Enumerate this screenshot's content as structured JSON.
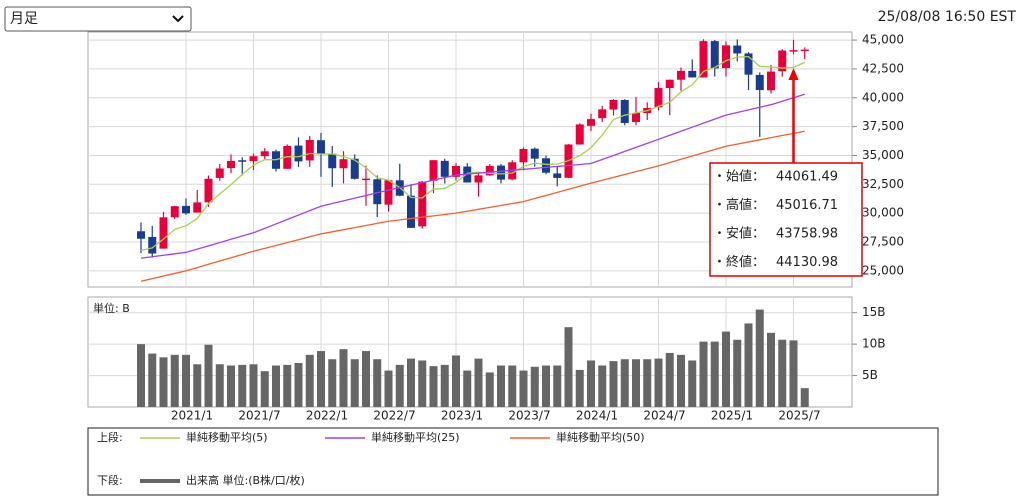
{
  "period_select": "月足",
  "timestamp": "25/08/08 16:50 EST",
  "tooltip": {
    "labels": [
      "・始値：",
      "・高値：",
      "・安値：",
      "・終値："
    ]
  },
  "chart_data": [
    {
      "type": "candlestick",
      "up_color": "#e8003c",
      "down_color": "#1a3c8f",
      "legend_label": "上段:",
      "ylim": [
        23600,
        45700
      ],
      "yticks": [
        {
          "value": 25000,
          "label": "25,000"
        },
        {
          "value": 27500,
          "label": "27,500"
        },
        {
          "value": 30000,
          "label": "30,000"
        },
        {
          "value": 32500,
          "label": "32,500"
        },
        {
          "value": 35000,
          "label": "35,000"
        },
        {
          "value": 37500,
          "label": "37,500"
        },
        {
          "value": 40000,
          "label": "40,000"
        },
        {
          "value": 42500,
          "label": "42,500"
        },
        {
          "value": 45000,
          "label": "45,000"
        }
      ],
      "grid": true,
      "open": [
        28430,
        27940,
        26925,
        29638,
        30627,
        30054,
        30939,
        33054,
        33904,
        34584,
        34507,
        34940,
        35361,
        33844,
        35856,
        34571,
        36322,
        35152,
        33893,
        34712,
        32989,
        32937,
        30737,
        32847,
        31510,
        28855,
        32810,
        34533,
        33148,
        34039,
        32656,
        33276,
        34123,
        32928,
        34408,
        35586,
        34757,
        33441,
        33061,
        35950,
        37567,
        38230,
        38980,
        39809,
        37900,
        38675,
        39169,
        40842,
        41563,
        42331,
        41763,
        44911,
        42574,
        44529,
        43845,
        41982,
        40650,
        42301,
        44061.49,
        44119
      ],
      "high": [
        29199,
        28903,
        30117,
        30637,
        31272,
        32010,
        33259,
        34257,
        35091,
        34849,
        35172,
        35631,
        35510,
        35952,
        36566,
        36679,
        36952,
        35824,
        35372,
        35093,
        34118,
        33272,
        32913,
        34281,
        32504,
        32784,
        34589,
        34712,
        34342,
        34335,
        33572,
        34257,
        34257,
        34589,
        35679,
        35679,
        34979,
        34050,
        35989,
        37778,
        38614,
        39282,
        39889,
        39871,
        40077,
        39606,
        41376,
        41586,
        42628,
        43325,
        45074,
        45014,
        44882,
        45054,
        43953,
        42200,
        42843,
        44215,
        45016.71,
        44360
      ],
      "low": [
        26537,
        26143,
        26925,
        29500,
        29856,
        30054,
        30548,
        32807,
        33474,
        33272,
        33741,
        34688,
        33613,
        33843,
        34006,
        34006,
        33150,
        32273,
        32578,
        32913,
        30636,
        29653,
        30143,
        31470,
        28715,
        28660,
        31727,
        32573,
        32812,
        32655,
        31430,
        33235,
        32586,
        32852,
        33705,
        34030,
        33368,
        32327,
        33042,
        35933,
        37122,
        37905,
        38459,
        37612,
        37611,
        38075,
        38904,
        38500,
        40611,
        41745,
        41763,
        41844,
        41825,
        43152,
        40661,
        36612,
        40373,
        41838,
        43758.98,
        43340
      ],
      "close": [
        27782,
        26502,
        29638,
        30606,
        29983,
        30932,
        32981,
        33875,
        34529,
        34503,
        34935,
        35361,
        33844,
        35820,
        34484,
        36338,
        35132,
        33893,
        34678,
        32977,
        32990,
        30775,
        32845,
        31510,
        28726,
        32733,
        34590,
        33147,
        34086,
        32657,
        33274,
        34098,
        32908,
        34408,
        35559,
        34721,
        33507,
        33052,
        35950,
        37689,
        38150,
        38996,
        39807,
        37816,
        38686,
        39119,
        40843,
        41563,
        42330,
        41763,
        44910,
        42544,
        44545,
        43841,
        42002,
        40669,
        42270,
        44095,
        44130.98,
        44176
      ],
      "series": [
        {
          "name": "単純移動平均(5)",
          "color": "#a8d050",
          "values": [
            26767,
            26991,
            27756,
            28592,
            28902,
            29532,
            30828,
            31675,
            32460,
            33364,
            34165,
            34641,
            34634,
            34893,
            34889,
            35169,
            35124,
            35133,
            34905,
            34604,
            33934,
            33063,
            32853,
            32219,
            31369,
            31318,
            32081,
            32141,
            32656,
            33443,
            33551,
            33452,
            33405,
            33469,
            34049,
            34339,
            34221,
            34249,
            34558,
            34984,
            35670,
            36767,
            38118,
            38492,
            38691,
            38885,
            39254,
            39605,
            40508,
            41124,
            42282,
            42622,
            43218,
            43521,
            43568,
            42720,
            42665,
            42575,
            42633,
            43068
          ]
        },
        {
          "name": "単純移動平均(25)",
          "color": "#a040f0",
          "values": [
            26100,
            26225,
            26350,
            26475,
            26600,
            26883,
            27167,
            27450,
            27733,
            28017,
            28300,
            28683,
            29067,
            29450,
            29833,
            30217,
            30600,
            30833,
            31067,
            31300,
            31533,
            31767,
            32000,
            32217,
            32433,
            32650,
            32867,
            33083,
            33300,
            33383,
            33467,
            33550,
            33633,
            33717,
            33800,
            33883,
            33967,
            34050,
            34133,
            34217,
            34300,
            34650,
            35000,
            35350,
            35700,
            36050,
            36400,
            36750,
            37100,
            37450,
            37800,
            38150,
            38500,
            38725,
            38950,
            39175,
            39400,
            39700,
            40000,
            40300
          ]
        },
        {
          "name": "単純移動平均(50)",
          "color": "#f06030",
          "values": [
            24100,
            24325,
            24550,
            24775,
            25000,
            25283,
            25567,
            25850,
            26133,
            26417,
            26700,
            26950,
            27200,
            27450,
            27700,
            27950,
            28200,
            28383,
            28567,
            28750,
            28933,
            29117,
            29300,
            29417,
            29533,
            29650,
            29767,
            29883,
            30000,
            30167,
            30333,
            30500,
            30667,
            30833,
            31000,
            31267,
            31533,
            31800,
            32067,
            32333,
            32600,
            32850,
            33100,
            33350,
            33600,
            33850,
            34100,
            34383,
            34667,
            34950,
            35233,
            35517,
            35800,
            35986,
            36171,
            36357,
            36543,
            36729,
            36914,
            37100
          ]
        }
      ]
    },
    {
      "type": "bar",
      "axis_label": "単位: B",
      "legend_label": "下段:",
      "categories": [
        null,
        null,
        null,
        null,
        "2021/1",
        null,
        null,
        null,
        null,
        null,
        "2021/7",
        null,
        null,
        null,
        null,
        null,
        "2022/1",
        null,
        null,
        null,
        null,
        null,
        "2022/7",
        null,
        null,
        null,
        null,
        null,
        "2023/1",
        null,
        null,
        null,
        null,
        null,
        "2023/7",
        null,
        null,
        null,
        null,
        null,
        "2024/1",
        null,
        null,
        null,
        null,
        null,
        "2024/7",
        null,
        null,
        null,
        null,
        null,
        "2025/1",
        null,
        null,
        null,
        null,
        null,
        "2025/7",
        null
      ],
      "ylim": [
        0,
        17.5
      ],
      "yticks": [
        {
          "value": 5,
          "label": "5B"
        },
        {
          "value": 10,
          "label": "10B"
        },
        {
          "value": 15,
          "label": "15B"
        }
      ],
      "grid": true,
      "series": [
        {
          "name": "出来高 単位:(B株/口/枚)",
          "color": "#666666",
          "values": [
            10.0,
            8.5,
            7.9,
            8.3,
            8.3,
            6.8,
            9.9,
            6.8,
            6.6,
            6.7,
            6.8,
            5.7,
            6.6,
            6.7,
            7.0,
            8.3,
            8.9,
            7.6,
            9.2,
            7.6,
            8.9,
            7.6,
            5.8,
            6.7,
            7.7,
            7.4,
            6.5,
            6.7,
            8.2,
            5.8,
            7.7,
            5.5,
            6.6,
            6.6,
            5.8,
            6.4,
            6.6,
            6.6,
            12.7,
            5.9,
            7.4,
            6.6,
            7.3,
            7.6,
            7.6,
            7.6,
            7.7,
            8.6,
            8.3,
            7.4,
            10.4,
            10.4,
            12.0,
            10.7,
            13.3,
            15.5,
            11.8,
            10.7,
            10.6,
            3.0
          ]
        }
      ]
    }
  ]
}
